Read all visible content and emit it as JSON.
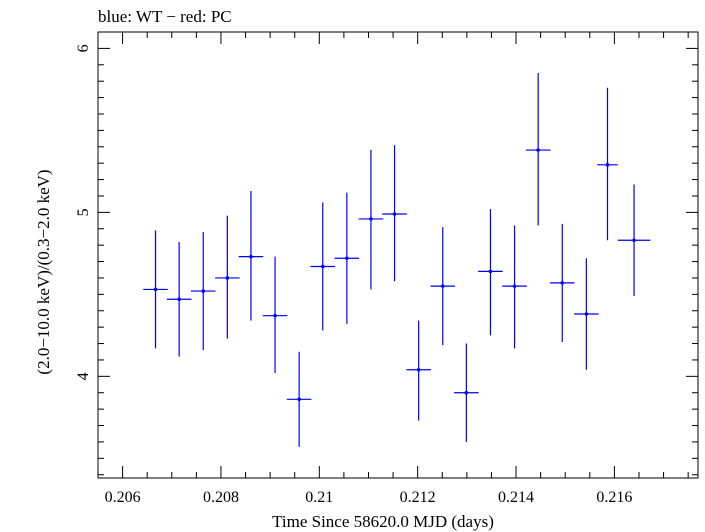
{
  "chart_data": {
    "type": "scatter",
    "title": "blue: WT − red: PC",
    "xlabel": "Time Since 58620.0 MJD (days)",
    "ylabel": "(2.0−10.0 keV)/(0.3−2.0 keV)",
    "xlim": [
      0.2055,
      0.2177
    ],
    "ylim": [
      3.38,
      6.1
    ],
    "x_ticks": [
      0.206,
      0.208,
      0.21,
      0.212,
      0.214,
      0.216
    ],
    "x_tick_labels": [
      "0.206",
      "0.208",
      "0.21",
      "0.212",
      "0.214",
      "0.216"
    ],
    "y_ticks": [
      4,
      5,
      6
    ],
    "y_tick_labels": [
      "4",
      "5",
      "6"
    ],
    "grid": false,
    "series": [
      {
        "name": "WT",
        "color": "#0000ff",
        "points": [
          {
            "x": 0.20667,
            "xerr": 0.00025,
            "y": 4.53,
            "ylo": 4.17,
            "yhi": 4.89
          },
          {
            "x": 0.20715,
            "xerr": 0.00025,
            "y": 4.47,
            "ylo": 4.12,
            "yhi": 4.82
          },
          {
            "x": 0.20764,
            "xerr": 0.00025,
            "y": 4.52,
            "ylo": 4.16,
            "yhi": 4.88
          },
          {
            "x": 0.20813,
            "xerr": 0.00025,
            "y": 4.6,
            "ylo": 4.23,
            "yhi": 4.98
          },
          {
            "x": 0.20861,
            "xerr": 0.00025,
            "y": 4.73,
            "ylo": 4.34,
            "yhi": 5.13
          },
          {
            "x": 0.2091,
            "xerr": 0.00025,
            "y": 4.37,
            "ylo": 4.02,
            "yhi": 4.73
          },
          {
            "x": 0.20959,
            "xerr": 0.00025,
            "y": 3.86,
            "ylo": 3.57,
            "yhi": 4.15
          },
          {
            "x": 0.21007,
            "xerr": 0.00025,
            "y": 4.67,
            "ylo": 4.28,
            "yhi": 5.06
          },
          {
            "x": 0.21056,
            "xerr": 0.00025,
            "y": 4.72,
            "ylo": 4.32,
            "yhi": 5.12
          },
          {
            "x": 0.21105,
            "xerr": 0.00025,
            "y": 4.96,
            "ylo": 4.53,
            "yhi": 5.38
          },
          {
            "x": 0.21153,
            "xerr": 0.00025,
            "y": 4.99,
            "ylo": 4.58,
            "yhi": 5.41
          },
          {
            "x": 0.21202,
            "xerr": 0.00025,
            "y": 4.04,
            "ylo": 3.73,
            "yhi": 4.34
          },
          {
            "x": 0.21251,
            "xerr": 0.00025,
            "y": 4.55,
            "ylo": 4.19,
            "yhi": 4.91
          },
          {
            "x": 0.21299,
            "xerr": 0.00025,
            "y": 3.9,
            "ylo": 3.6,
            "yhi": 4.2
          },
          {
            "x": 0.21348,
            "xerr": 0.00025,
            "y": 4.64,
            "ylo": 4.25,
            "yhi": 5.02
          },
          {
            "x": 0.21397,
            "xerr": 0.00025,
            "y": 4.55,
            "ylo": 4.17,
            "yhi": 4.92
          },
          {
            "x": 0.21445,
            "xerr": 0.00025,
            "y": 5.38,
            "ylo": 4.92,
            "yhi": 5.85
          },
          {
            "x": 0.21494,
            "xerr": 0.00025,
            "y": 4.57,
            "ylo": 4.21,
            "yhi": 4.93
          },
          {
            "x": 0.21543,
            "xerr": 0.00025,
            "y": 4.38,
            "ylo": 4.04,
            "yhi": 4.72
          },
          {
            "x": 0.21586,
            "xerr": 0.00021,
            "y": 5.29,
            "ylo": 4.83,
            "yhi": 5.76
          },
          {
            "x": 0.2164,
            "xerr": 0.00033,
            "y": 4.83,
            "ylo": 4.49,
            "yhi": 5.17
          }
        ]
      }
    ]
  }
}
